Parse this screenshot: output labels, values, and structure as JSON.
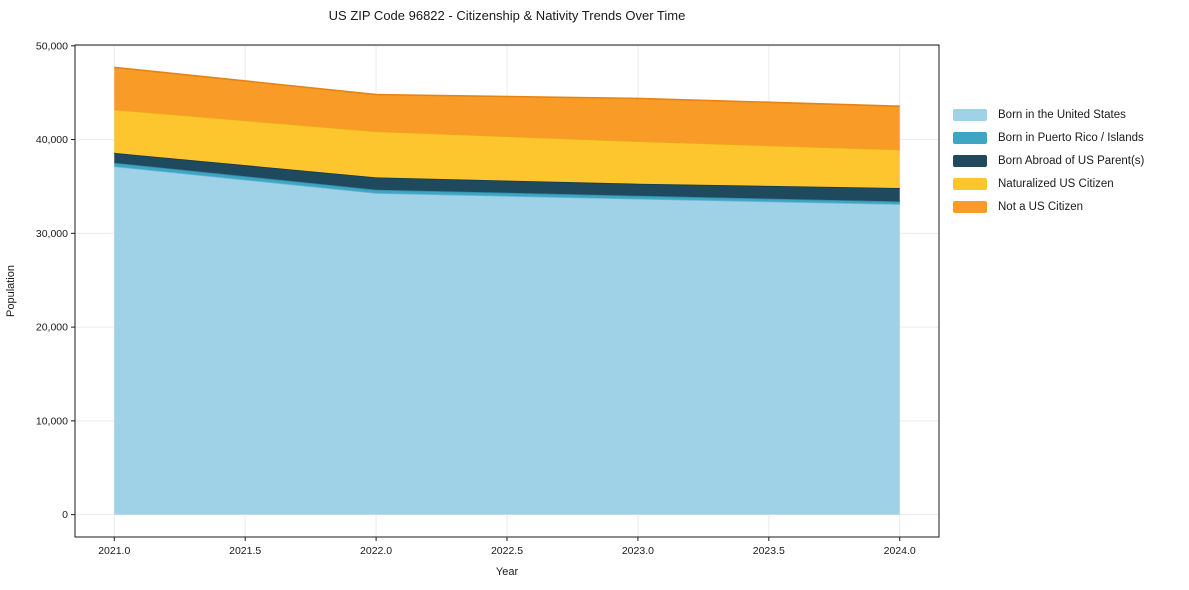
{
  "chart_data": {
    "type": "area",
    "stacked": true,
    "title": "US ZIP Code 96822 - Citizenship & Nativity Trends Over Time",
    "xlabel": "Year",
    "ylabel": "Population",
    "x": [
      2021,
      2022,
      2023,
      2024
    ],
    "series": [
      {
        "name": "Born in the United States",
        "color": "#a0d2e7",
        "edge_color": "#6cb2d6",
        "values": [
          37150,
          34300,
          33690,
          33120
        ]
      },
      {
        "name": "Born in Puerto Rico / Islands",
        "color": "#3ea6c2",
        "edge_color": "#2e8fa9",
        "values": [
          370,
          350,
          320,
          280
        ]
      },
      {
        "name": "Born Abroad of US Parent(s)",
        "color": "#1f4a5e",
        "edge_color": "#16394a",
        "values": [
          1060,
          1320,
          1280,
          1430
        ]
      },
      {
        "name": "Naturalized US Citizen",
        "color": "#fdc62f",
        "edge_color": "#edab16",
        "values": [
          4620,
          4910,
          4530,
          4100
        ]
      },
      {
        "name": "Not a US Citizen",
        "color": "#f89b27",
        "edge_color": "#e68312",
        "values": [
          4500,
          3920,
          4570,
          4630
        ]
      }
    ],
    "totals_by_year": [
      47700,
      44800,
      44390,
      43560
    ],
    "xlim": [
      2020.85,
      2024.15
    ],
    "ylim": [
      -2385,
      50085
    ],
    "xticks": {
      "values": [
        2021.0,
        2021.5,
        2022.0,
        2022.5,
        2023.0,
        2023.5,
        2024.0
      ],
      "labels": [
        "2021.0",
        "2021.5",
        "2022.0",
        "2022.5",
        "2023.0",
        "2023.5",
        "2024.0"
      ]
    },
    "yticks": {
      "values": [
        0,
        10000,
        20000,
        30000,
        40000,
        50000
      ],
      "labels": [
        "0",
        "10,000",
        "20,000",
        "30,000",
        "40,000",
        "50,000"
      ]
    },
    "grid": true,
    "grid_color": "#ebebeb",
    "spine_color": "#1a1a1a",
    "background_color": "#ffffff",
    "legend_position": "right-outside"
  }
}
